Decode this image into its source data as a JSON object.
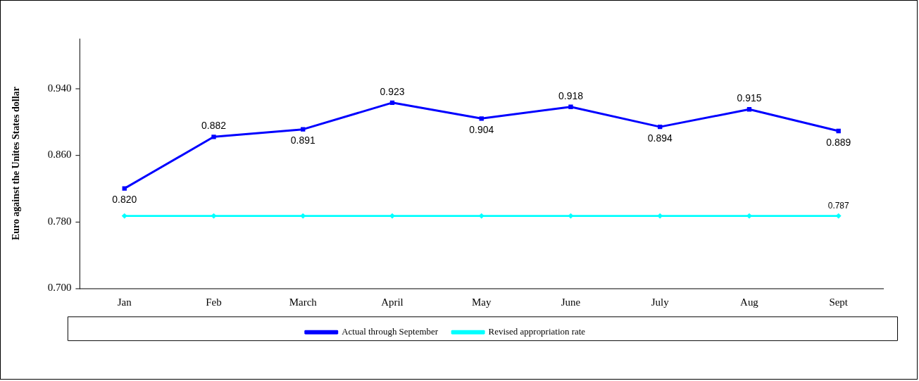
{
  "chart_data": {
    "type": "line",
    "ylabel": "Euro against the Unites States dollar",
    "categories": [
      "Jan",
      "Feb",
      "March",
      "April",
      "May",
      "June",
      "July",
      "Aug",
      "Sept"
    ],
    "series": [
      {
        "name": "Actual through September",
        "color": "#0000ff",
        "marker": "square",
        "values": [
          0.82,
          0.882,
          0.891,
          0.923,
          0.904,
          0.918,
          0.894,
          0.915,
          0.889
        ],
        "value_labels": [
          "0.820",
          "0.882",
          "0.891",
          "0.923",
          "0.904",
          "0.918",
          "0.894",
          "0.915",
          "0.889"
        ]
      },
      {
        "name": "Revised appropriation rate",
        "color": "#00ffff",
        "marker": "diamond",
        "values": [
          0.787,
          0.787,
          0.787,
          0.787,
          0.787,
          0.787,
          0.787,
          0.787,
          0.787
        ],
        "value_labels": [
          null,
          null,
          null,
          null,
          null,
          null,
          null,
          null,
          "0.787"
        ]
      }
    ],
    "ylim": [
      0.7,
      1.0
    ],
    "yticks": [
      {
        "value": 0.7,
        "label": "0.700"
      },
      {
        "value": 0.78,
        "label": "0.780"
      },
      {
        "value": 0.86,
        "label": "0.860"
      },
      {
        "value": 0.94,
        "label": "0.940"
      }
    ],
    "grid": false,
    "legend": "bottom",
    "line_style": "solid"
  }
}
